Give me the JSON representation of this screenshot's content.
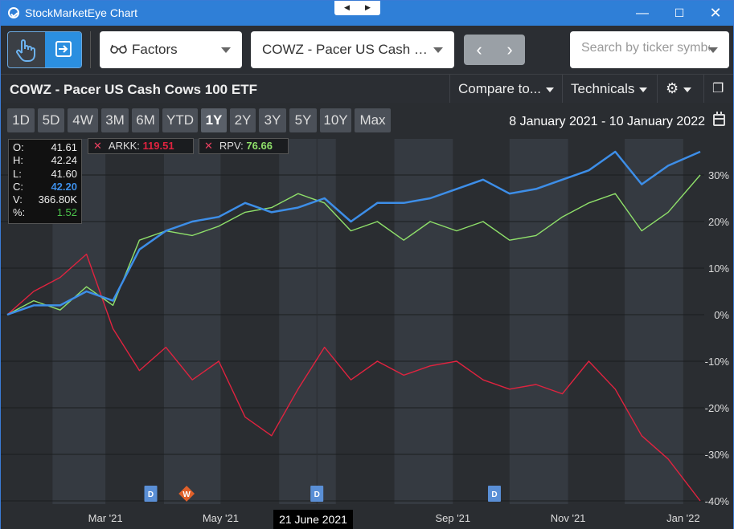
{
  "window": {
    "title": "StockMarketEye Chart"
  },
  "toolbar": {
    "factors_label": "Factors",
    "symbol_selected": "COWZ - Pacer US Cash Cows 100 ETF",
    "symbol_display": "COWZ - Pacer US Cash …",
    "search_placeholder": "Search by ticker symbol"
  },
  "header": {
    "title": "COWZ - Pacer US Cash Cows 100 ETF",
    "compare_label": "Compare to...",
    "technicals_label": "Technicals"
  },
  "periods": [
    "1D",
    "5D",
    "4W",
    "3M",
    "6M",
    "YTD",
    "1Y",
    "2Y",
    "3Y",
    "5Y",
    "10Y",
    "Max"
  ],
  "active_period": "1Y",
  "date_range": "8 January 2021 - 10 January 2022",
  "ohlc": {
    "O": "41.61",
    "H": "42.24",
    "L": "41.60",
    "C": "42.20",
    "V": "366.80K",
    "pct": "1.52"
  },
  "compare": [
    {
      "symbol": "ARKK:",
      "value": "119.51"
    },
    {
      "symbol": "RPV:",
      "value": "76.66"
    }
  ],
  "crosshair_date": "21 June 2021",
  "markers": [
    {
      "type": "D",
      "date": "2021-03-25",
      "color": "#5a8fd6"
    },
    {
      "type": "W",
      "date": "2021-04-13",
      "color": "#e0602a"
    },
    {
      "type": "D",
      "date": "2021-06-21",
      "color": "#5a8fd6"
    },
    {
      "type": "D",
      "date": "2021-09-23",
      "color": "#5a8fd6"
    }
  ],
  "colors": {
    "COWZ": "#3d8ee8",
    "ARKK": "#e0233f",
    "RPV": "#8fe06a"
  },
  "chart_data": {
    "type": "line",
    "xlabel": "",
    "ylabel": "",
    "x_ticks": [
      "Mar '21",
      "May '21",
      "Sep '21",
      "Nov '21",
      "Jan '22"
    ],
    "y_ticks": [
      "30%",
      "20%",
      "10%",
      "0%",
      "-10%",
      "-20%",
      "-30%",
      "-40%"
    ],
    "ylim": [
      -40,
      35
    ],
    "x": [
      "2021-01-08",
      "2021-01-22",
      "2021-02-05",
      "2021-02-19",
      "2021-03-05",
      "2021-03-19",
      "2021-04-02",
      "2021-04-16",
      "2021-04-30",
      "2021-05-14",
      "2021-05-28",
      "2021-06-11",
      "2021-06-25",
      "2021-07-09",
      "2021-07-23",
      "2021-08-06",
      "2021-08-20",
      "2021-09-03",
      "2021-09-17",
      "2021-10-01",
      "2021-10-15",
      "2021-10-29",
      "2021-11-12",
      "2021-11-26",
      "2021-12-10",
      "2021-12-24",
      "2022-01-10"
    ],
    "series": [
      {
        "name": "COWZ",
        "values": [
          0,
          2,
          2,
          5,
          3,
          14,
          18,
          20,
          21,
          24,
          22,
          23,
          25,
          20,
          24,
          24,
          25,
          27,
          29,
          26,
          27,
          29,
          31,
          35,
          28,
          32,
          35
        ]
      },
      {
        "name": "RPV",
        "values": [
          0,
          3,
          1,
          6,
          2,
          16,
          18,
          17,
          19,
          22,
          23,
          26,
          24,
          18,
          20,
          16,
          20,
          18,
          20,
          16,
          17,
          21,
          24,
          26,
          18,
          22,
          30
        ]
      },
      {
        "name": "ARKK",
        "values": [
          0,
          5,
          8,
          13,
          -3,
          -12,
          -7,
          -14,
          -10,
          -22,
          -26,
          -16,
          -7,
          -14,
          -10,
          -13,
          -11,
          -10,
          -14,
          -16,
          -15,
          -17,
          -10,
          -16,
          -26,
          -31,
          -40
        ]
      }
    ]
  }
}
